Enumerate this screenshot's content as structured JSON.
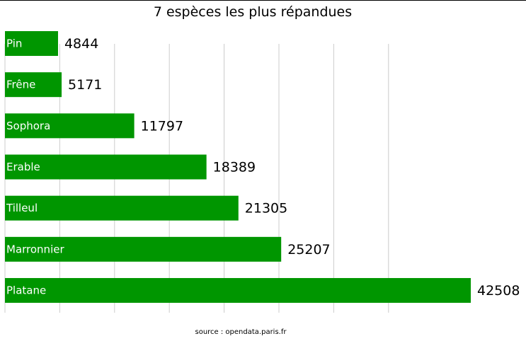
{
  "chart_data": {
    "type": "bar",
    "orientation": "horizontal",
    "title": "7 espèces les plus répandues",
    "categories": [
      "Pin",
      "Frêne",
      "Sophora",
      "Erable",
      "Tilleul",
      "Marronnier",
      "Platane"
    ],
    "values": [
      4844,
      5171,
      11797,
      18389,
      21305,
      25207,
      42508
    ],
    "xlim": [
      0,
      42508
    ],
    "grid": true,
    "legend": "none",
    "bar_color": "#009600",
    "label_color": "#ffffff"
  },
  "footer": {
    "source": "source : opendata.paris.fr"
  }
}
